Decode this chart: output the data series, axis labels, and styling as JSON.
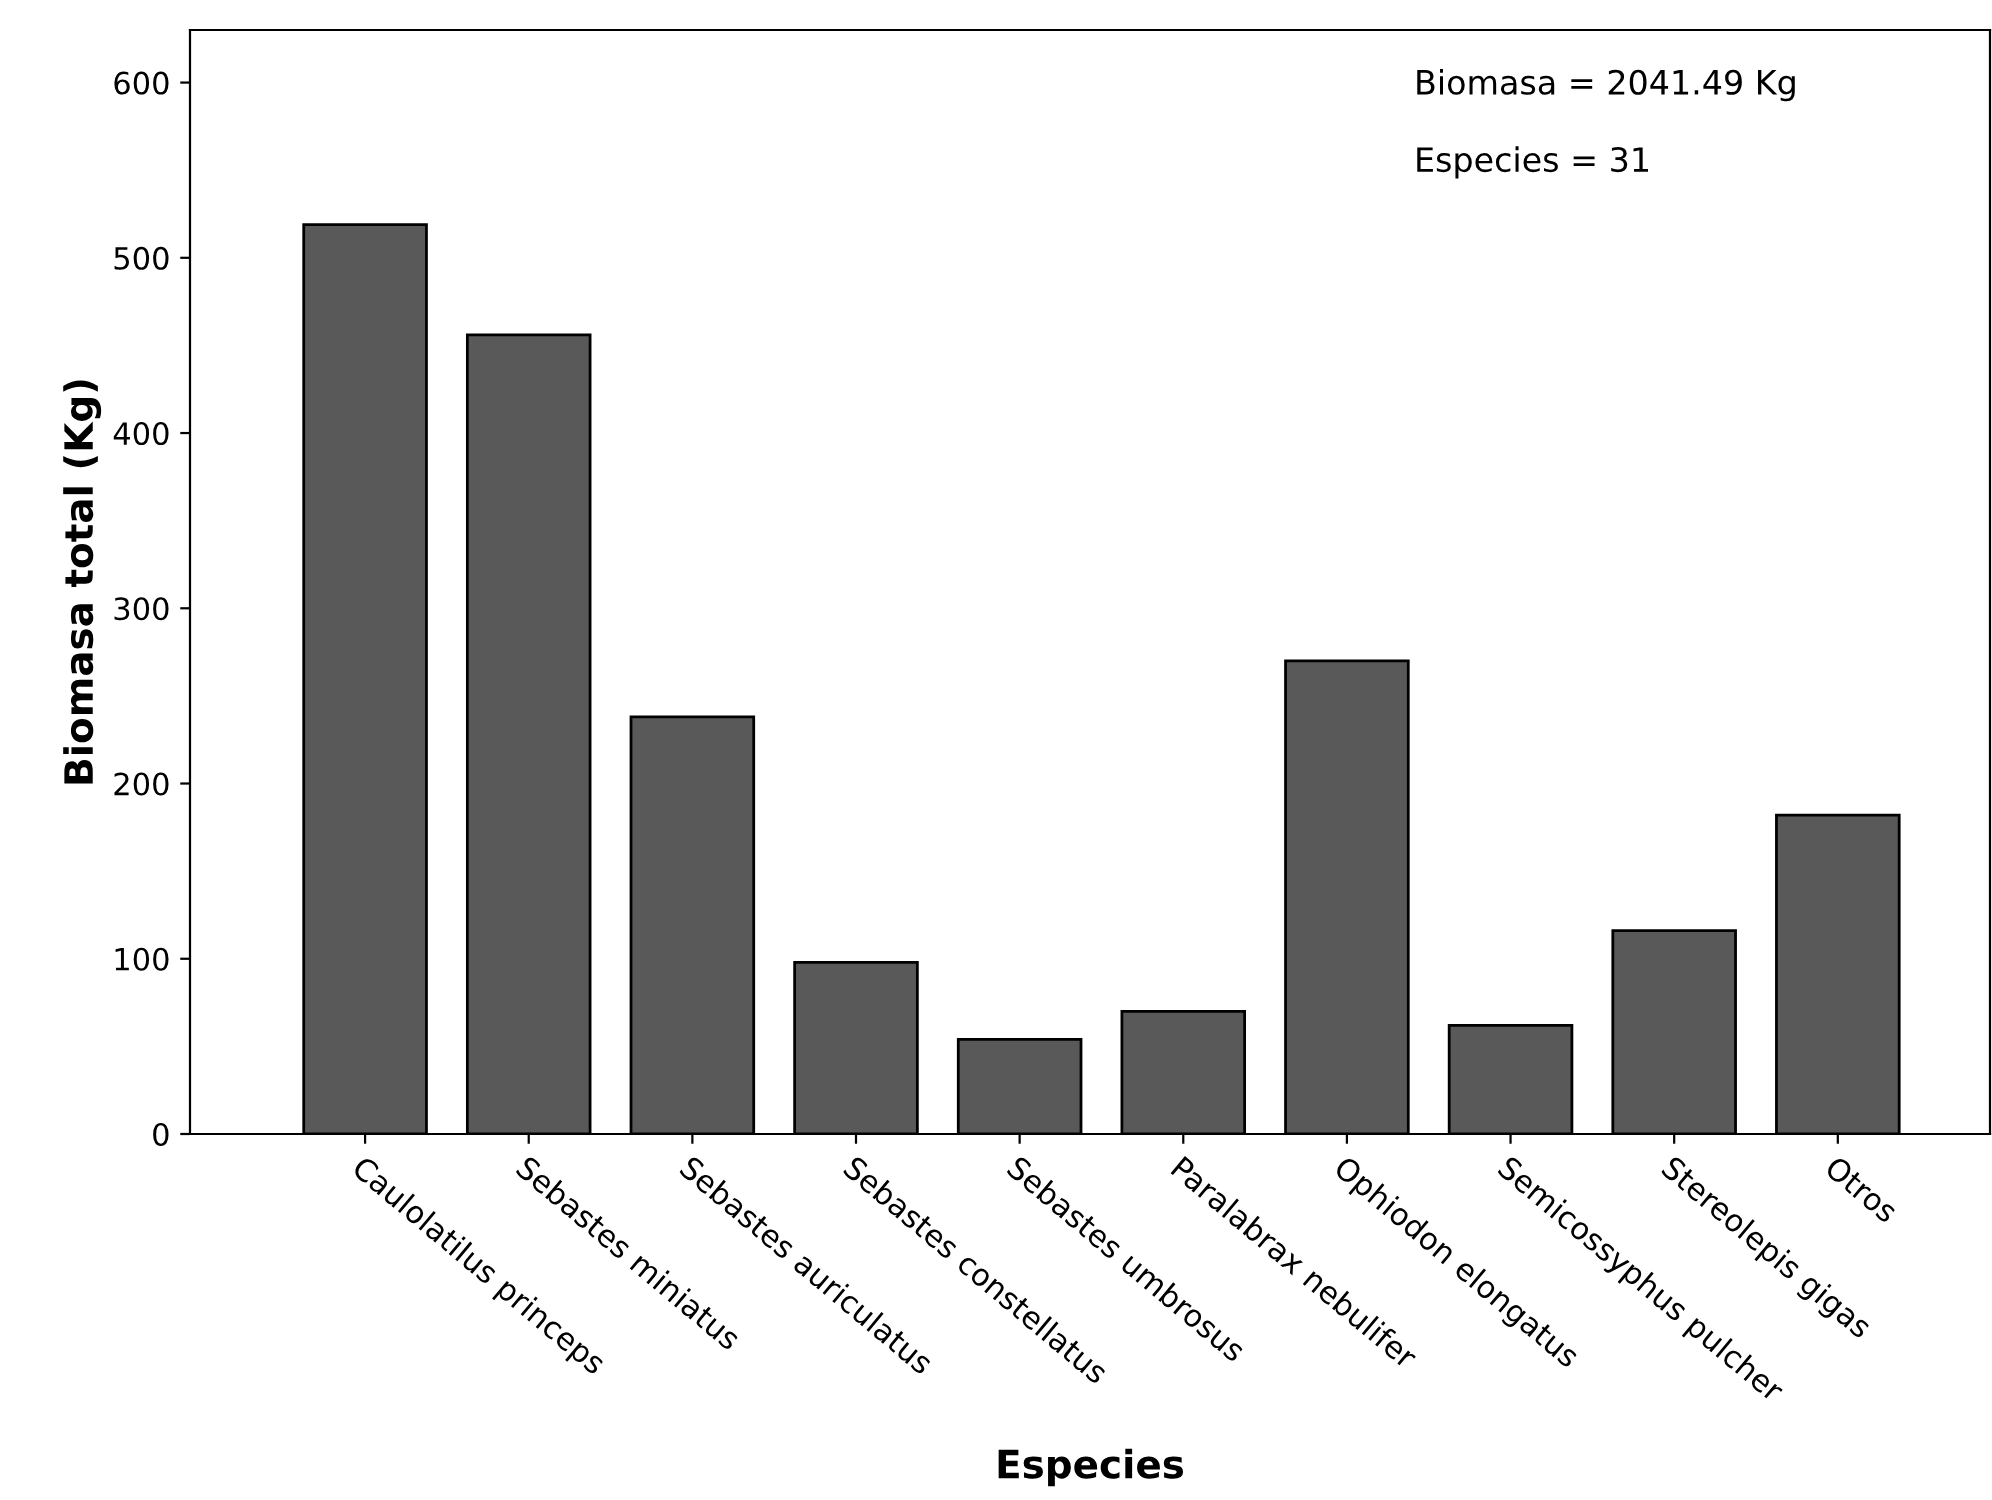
{
  "chart_data": {
    "type": "bar",
    "xlabel": "Especies",
    "ylabel": "Biomasa total (Kg)",
    "categories": [
      "Caulolatilus princeps",
      "Sebastes miniatus",
      "Sebastes auriculatus",
      "Sebastes constellatus",
      "Sebastes umbrosus",
      "Paralabrax nebulifer",
      "Ophiodon elongatus",
      "Semicossyphus pulcher",
      "Stereolepis gigas",
      "Otros"
    ],
    "values": [
      519,
      456,
      238,
      98,
      54,
      70,
      270,
      62,
      116,
      182
    ],
    "color": "#595959",
    "ylim": [
      0,
      630
    ],
    "yticks": [
      0,
      100,
      200,
      300,
      400,
      500,
      600
    ],
    "grid": false,
    "legend": false,
    "annotations": [
      "Biomasa = 2041.49 Kg",
      "Especies = 31"
    ]
  }
}
